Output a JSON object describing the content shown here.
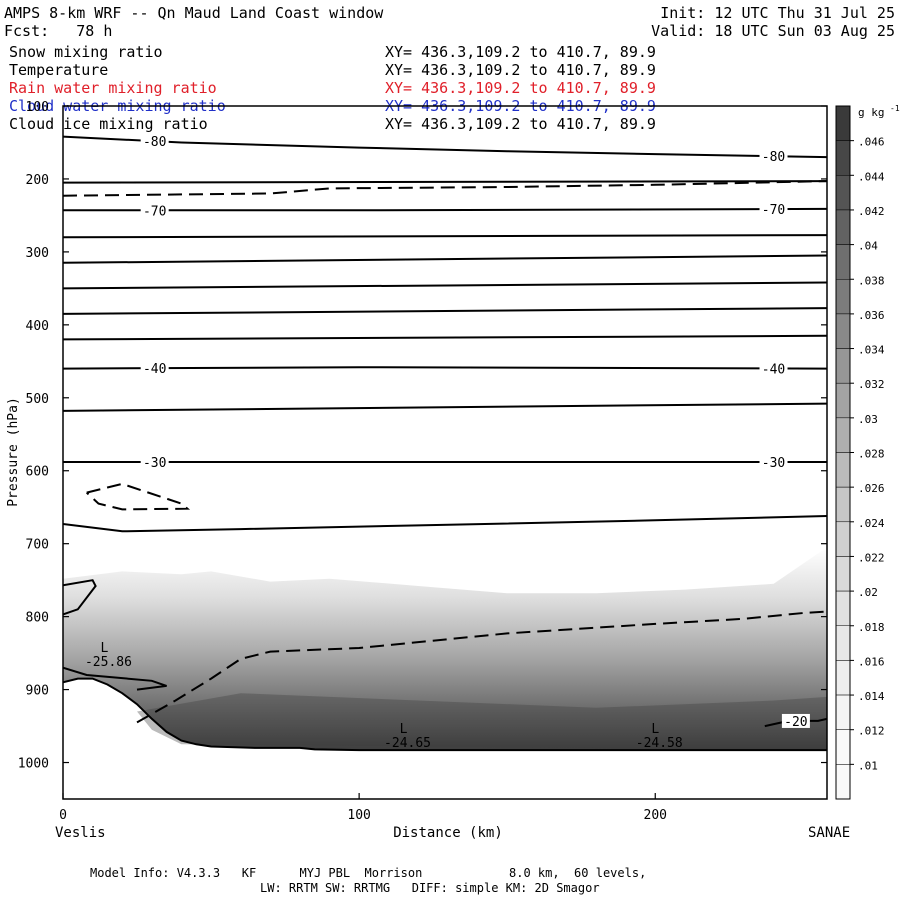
{
  "header": {
    "title": "AMPS 8-km WRF -- Qn Maud Land Coast window",
    "init": "Init: 12 UTC Thu 31 Jul 25",
    "fcst": "Fcst:   78 h",
    "valid": "Valid: 18 UTC Sun 03 Aug 25"
  },
  "fields": [
    {
      "name": "Snow mixing ratio",
      "xy": "XY= 436.3,109.2 to 410.7, 89.9",
      "color": "#000000"
    },
    {
      "name": "Temperature",
      "xy": "XY= 436.3,109.2 to 410.7, 89.9",
      "color": "#000000"
    },
    {
      "name": "Rain water mixing ratio",
      "xy": "XY= 436.3,109.2 to 410.7, 89.9",
      "color": "#e0202a"
    },
    {
      "name": "Cloud water mixing ratio",
      "xy": "XY= 436.3,109.2 to 410.7, 89.9",
      "color": "#2030c8"
    },
    {
      "name": "Cloud ice mixing ratio",
      "xy": "XY= 436.3,109.2 to 410.7, 89.9",
      "color": "#000000"
    }
  ],
  "footer": {
    "line1": "Model Info: V4.3.3   KF      MYJ PBL  Morrison            8.0 km,  60 levels,",
    "line2": "LW: RRTM SW: RRTMG   DIFF: simple KM: 2D Smagor"
  },
  "chart_data": {
    "type": "heatmap",
    "xlabel": "Distance (km)",
    "ylabel": "Pressure (hPa)",
    "xlim": [
      0,
      258
    ],
    "ylim": [
      1050,
      100
    ],
    "x_ticks": [
      0,
      100,
      200
    ],
    "y_ticks": [
      100,
      200,
      300,
      400,
      500,
      600,
      700,
      800,
      900,
      1000
    ],
    "x_start_label": "Veslis",
    "x_end_label": "SANAE",
    "colorbar": {
      "unit_base": "g kg",
      "unit_exp": "-1",
      "levels": [
        0.01,
        0.012,
        0.014,
        0.016,
        0.018,
        0.02,
        0.022,
        0.024,
        0.026,
        0.028,
        0.03,
        0.032,
        0.034,
        0.036,
        0.038,
        0.04,
        0.042,
        0.044,
        0.046
      ],
      "labels": [
        ".01",
        ".012",
        ".014",
        ".016",
        ".018",
        ".02",
        ".022",
        ".024",
        ".026",
        ".028",
        ".03",
        ".032",
        ".034",
        ".036",
        ".038",
        ".04",
        ".042",
        ".044",
        ".046"
      ],
      "colors_dark_to_light": [
        "#3a3a3a",
        "#474747",
        "#545454",
        "#626262",
        "#6f6f6f",
        "#7c7c7c",
        "#898989",
        "#969696",
        "#a3a3a3",
        "#afafaf",
        "#bbbbbb",
        "#c6c6c6",
        "#d0d0d0",
        "#d9d9d9",
        "#e1e1e1",
        "#e8e8e8",
        "#eeeeee",
        "#f4f4f4",
        "#f9f9f9"
      ]
    },
    "ground_pressure": [
      [
        0,
        890
      ],
      [
        5,
        885
      ],
      [
        10,
        885
      ],
      [
        15,
        893
      ],
      [
        20,
        905
      ],
      [
        25,
        920
      ],
      [
        30,
        940
      ],
      [
        35,
        958
      ],
      [
        40,
        970
      ],
      [
        45,
        975
      ],
      [
        50,
        978
      ],
      [
        65,
        980
      ],
      [
        80,
        980
      ],
      [
        85,
        982
      ],
      [
        100,
        983
      ],
      [
        150,
        983
      ],
      [
        200,
        983
      ],
      [
        240,
        983
      ],
      [
        258,
        983
      ]
    ],
    "snow_field": {
      "top": [
        [
          0,
          748
        ],
        [
          20,
          738
        ],
        [
          40,
          742
        ],
        [
          50,
          738
        ],
        [
          70,
          752
        ],
        [
          90,
          748
        ],
        [
          120,
          758
        ],
        [
          150,
          768
        ],
        [
          180,
          768
        ],
        [
          210,
          763
        ],
        [
          240,
          755
        ],
        [
          258,
          705
        ]
      ],
      "darkest_level": 0.046
    },
    "temperature_contours": [
      {
        "label": "-80",
        "points": [
          [
            0,
            142
          ],
          [
            40,
            150
          ],
          [
            100,
            157
          ],
          [
            150,
            162
          ],
          [
            200,
            166
          ],
          [
            258,
            170
          ]
        ]
      },
      {
        "label": "",
        "points": [
          [
            0,
            205
          ],
          [
            258,
            203
          ]
        ]
      },
      {
        "label": "-70",
        "points": [
          [
            0,
            243
          ],
          [
            100,
            243
          ],
          [
            258,
            241
          ]
        ]
      },
      {
        "label": "",
        "points": [
          [
            0,
            280
          ],
          [
            258,
            277
          ]
        ]
      },
      {
        "label": "",
        "points": [
          [
            0,
            315
          ],
          [
            258,
            305
          ]
        ]
      },
      {
        "label": "",
        "points": [
          [
            0,
            350
          ],
          [
            258,
            342
          ]
        ]
      },
      {
        "label": "",
        "points": [
          [
            0,
            385
          ],
          [
            258,
            377
          ]
        ]
      },
      {
        "label": "",
        "points": [
          [
            0,
            420
          ],
          [
            258,
            415
          ]
        ]
      },
      {
        "label": "-40",
        "points": [
          [
            0,
            460
          ],
          [
            100,
            458
          ],
          [
            258,
            460
          ]
        ]
      },
      {
        "label": "",
        "points": [
          [
            0,
            518
          ],
          [
            258,
            508
          ]
        ]
      },
      {
        "label": "-30",
        "points": [
          [
            0,
            588
          ],
          [
            100,
            588
          ],
          [
            258,
            588
          ]
        ]
      },
      {
        "label": "",
        "points": [
          [
            0,
            673
          ],
          [
            20,
            683
          ],
          [
            60,
            680
          ],
          [
            120,
            675
          ],
          [
            200,
            668
          ],
          [
            258,
            662
          ]
        ]
      },
      {
        "label": "-20",
        "points": [
          [
            237,
            950
          ],
          [
            245,
            943
          ],
          [
            255,
            943
          ],
          [
            258,
            940
          ]
        ]
      }
    ],
    "dashed_contours": [
      [
        [
          0,
          223
        ],
        [
          70,
          220
        ],
        [
          90,
          213
        ],
        [
          150,
          211
        ],
        [
          200,
          208
        ],
        [
          258,
          203
        ]
      ],
      [
        [
          8,
          630
        ],
        [
          15,
          623
        ],
        [
          20,
          618
        ],
        [
          40,
          645
        ],
        [
          42,
          652
        ],
        [
          20,
          653
        ],
        [
          12,
          645
        ],
        [
          8,
          630
        ]
      ],
      [
        [
          25,
          945
        ],
        [
          38,
          915
        ],
        [
          50,
          885
        ],
        [
          60,
          858
        ],
        [
          70,
          848
        ],
        [
          100,
          843
        ],
        [
          150,
          823
        ],
        [
          200,
          810
        ],
        [
          230,
          803
        ],
        [
          250,
          795
        ],
        [
          258,
          793
        ]
      ]
    ],
    "solid_lobes": [
      [
        [
          0,
          757
        ],
        [
          10,
          750
        ],
        [
          11,
          758
        ],
        [
          5,
          790
        ],
        [
          0,
          797
        ]
      ],
      [
        [
          0,
          870
        ],
        [
          8,
          880
        ],
        [
          30,
          888
        ],
        [
          35,
          895
        ],
        [
          25,
          900
        ]
      ]
    ],
    "annotations": [
      {
        "mark": "L",
        "value": "-25.86",
        "x": 14,
        "p": 862
      },
      {
        "mark": "L",
        "value": "-24.65",
        "x": 115,
        "p": 973
      },
      {
        "mark": "L",
        "value": "-24.58",
        "x": 200,
        "p": 973
      }
    ]
  }
}
